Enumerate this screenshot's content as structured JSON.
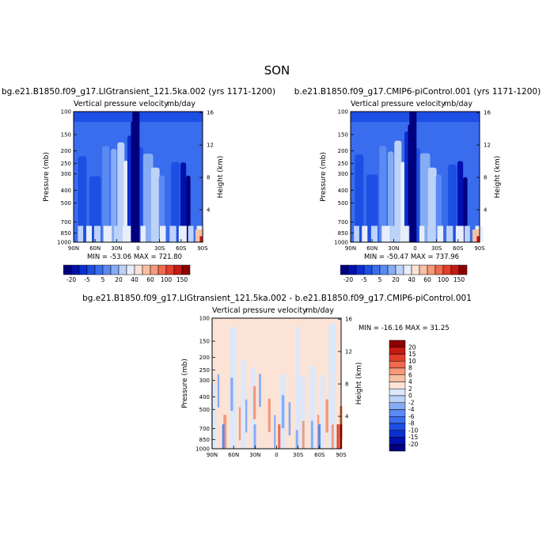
{
  "main_title": "SON",
  "chart_data": [
    {
      "type": "heatmap",
      "title": "bg.e21.B1850.f09_g17.LIGtransient_121.5ka.002 (yrs 1171-1200)",
      "left_string": "Vertical pressure velocity",
      "right_string": "mb/day",
      "ylabel": "Pressure (mb)",
      "y2label": "Height (km)",
      "x_ticks": [
        "90N",
        "60N",
        "30N",
        "0",
        "30S",
        "60S",
        "90S"
      ],
      "y_ticks": [
        100,
        150,
        200,
        250,
        300,
        400,
        500,
        700,
        850,
        1000
      ],
      "y2_ticks": [
        16,
        12,
        8,
        4
      ],
      "ylim": [
        1000,
        100
      ],
      "xlim": [
        90,
        -90
      ],
      "stats_text": "MIN = -53.06   MAX = 721.80",
      "min": -53.06,
      "max": 721.8,
      "colorbar_labels": [
        "-20",
        "-5",
        "5",
        "20",
        "40",
        "60",
        "100",
        "150"
      ],
      "colorbar_orientation": "horizontal"
    },
    {
      "type": "heatmap",
      "title": "b.e21.B1850.f09_g17.CMIP6-piControl.001 (yrs 1171-1200)",
      "left_string": "Vertical pressure velocity",
      "right_string": "mb/day",
      "ylabel": "Pressure (mb)",
      "y2label": "Height (km)",
      "x_ticks": [
        "90N",
        "60N",
        "30N",
        "0",
        "30S",
        "60S",
        "90S"
      ],
      "y_ticks": [
        100,
        150,
        200,
        250,
        300,
        400,
        500,
        700,
        850,
        1000
      ],
      "y2_ticks": [
        16,
        12,
        8,
        4
      ],
      "ylim": [
        1000,
        100
      ],
      "xlim": [
        90,
        -90
      ],
      "stats_text": "MIN = -50.47   MAX = 737.96",
      "min": -50.47,
      "max": 737.96,
      "colorbar_labels": [
        "-20",
        "-5",
        "5",
        "20",
        "40",
        "60",
        "100",
        "150"
      ],
      "colorbar_orientation": "horizontal"
    },
    {
      "type": "heatmap",
      "title": "bg.e21.B1850.f09_g17.LIGtransient_121.5ka.002 - b.e21.B1850.f09_g17.CMIP6-piControl.001",
      "left_string": "Vertical pressure velocity",
      "right_string": "mb/day",
      "ylabel": "Pressure (mb)",
      "y2label": "Height (km)",
      "x_ticks": [
        "90N",
        "60N",
        "30N",
        "0",
        "30S",
        "60S",
        "90S"
      ],
      "y_ticks": [
        100,
        150,
        200,
        250,
        300,
        400,
        500,
        700,
        850,
        1000
      ],
      "y2_ticks": [
        16,
        12,
        8,
        4
      ],
      "ylim": [
        1000,
        100
      ],
      "xlim": [
        90,
        -90
      ],
      "stats_text": "MIN = -16.16   MAX =  31.25",
      "min": -16.16,
      "max": 31.25,
      "colorbar_labels": [
        "20",
        "15",
        "10",
        "8",
        "6",
        "4",
        "2",
        "0",
        "-2",
        "-4",
        "-6",
        "-8",
        "-10",
        "-15",
        "-20"
      ],
      "colorbar_orientation": "vertical"
    }
  ],
  "colors": {
    "full_field_palette": [
      "#00007f",
      "#0011b0",
      "#0a2fd0",
      "#1e4fe4",
      "#3a6cee",
      "#5a8af2",
      "#86acf4",
      "#bcd2f8",
      "#e8eefb",
      "#fbe3d6",
      "#f7c0a4",
      "#f4997a",
      "#ef6a4e",
      "#e23e2a",
      "#c41b12",
      "#8e0000"
    ],
    "difference_palette": [
      "#8e0000",
      "#c41b12",
      "#e23e2a",
      "#ef6a4e",
      "#f4997a",
      "#f7c0a4",
      "#fbe3d6",
      "#dce8fb",
      "#bcd2f8",
      "#86acf4",
      "#5a8af2",
      "#3a6cee",
      "#1e4fe4",
      "#0a2fd0",
      "#0011b0",
      "#00007f"
    ]
  }
}
